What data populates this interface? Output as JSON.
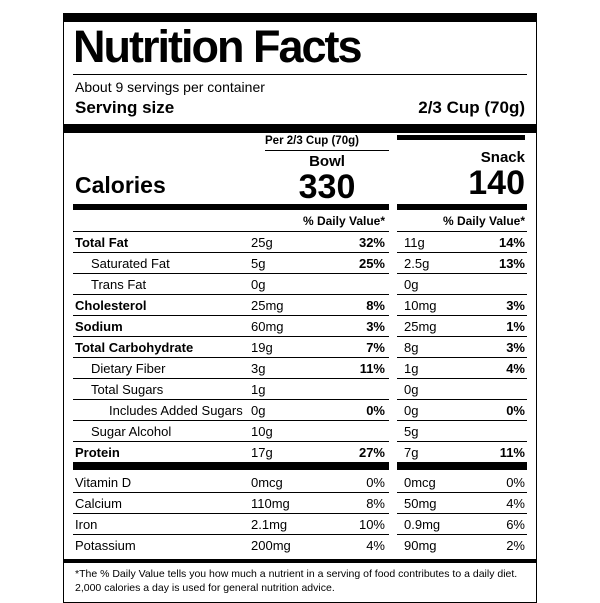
{
  "label": {
    "title": "Nutrition Facts",
    "servings_per_container": "About 9 servings per container",
    "serving_size": {
      "label": "Serving size",
      "value": "2/3 Cup (70g)"
    },
    "calories": {
      "per_header": "Per 2/3 Cup (70g)",
      "label": "Calories",
      "columns": [
        {
          "name": "Bowl",
          "value": "330"
        },
        {
          "name": "Snack",
          "value": "140"
        }
      ]
    },
    "daily_value_header": "% Daily Value*",
    "nutrients": [
      {
        "name": "Total Fat",
        "bold": true,
        "indent": 0,
        "amount1": "25g",
        "dv1": "32%",
        "amount2": "11g",
        "dv2": "14%"
      },
      {
        "name": "Saturated Fat",
        "bold": false,
        "indent": 1,
        "amount1": "5g",
        "dv1": "25%",
        "amount2": "2.5g",
        "dv2": "13%"
      },
      {
        "name": "Trans Fat",
        "bold": false,
        "indent": 1,
        "amount1": "0g",
        "dv1": "",
        "amount2": "0g",
        "dv2": ""
      },
      {
        "name": "Cholesterol",
        "bold": true,
        "indent": 0,
        "amount1": "25mg",
        "dv1": "8%",
        "amount2": "10mg",
        "dv2": "3%"
      },
      {
        "name": "Sodium",
        "bold": true,
        "indent": 0,
        "amount1": "60mg",
        "dv1": "3%",
        "amount2": "25mg",
        "dv2": "1%"
      },
      {
        "name": "Total Carbohydrate",
        "bold": true,
        "indent": 0,
        "amount1": "19g",
        "dv1": "7%",
        "amount2": "8g",
        "dv2": "3%"
      },
      {
        "name": "Dietary Fiber",
        "bold": false,
        "indent": 1,
        "amount1": "3g",
        "dv1": "11%",
        "amount2": "1g",
        "dv2": "4%"
      },
      {
        "name": "Total Sugars",
        "bold": false,
        "indent": 1,
        "amount1": "1g",
        "dv1": "",
        "amount2": "0g",
        "dv2": ""
      },
      {
        "name": "Includes Added Sugars",
        "bold": false,
        "indent": 2,
        "amount1": "0g",
        "dv1": "0%",
        "amount2": "0g",
        "dv2": "0%"
      },
      {
        "name": "Sugar Alcohol",
        "bold": false,
        "indent": 1,
        "amount1": "10g",
        "dv1": "",
        "amount2": "5g",
        "dv2": ""
      },
      {
        "name": "Protein",
        "bold": true,
        "indent": 0,
        "amount1": "17g",
        "dv1": "27%",
        "amount2": "7g",
        "dv2": "11%"
      }
    ],
    "vitamins": [
      {
        "name": "Vitamin D",
        "amount1": "0mcg",
        "dv1": "0%",
        "amount2": "0mcg",
        "dv2": "0%"
      },
      {
        "name": "Calcium",
        "amount1": "110mg",
        "dv1": "8%",
        "amount2": "50mg",
        "dv2": "4%"
      },
      {
        "name": "Iron",
        "amount1": "2.1mg",
        "dv1": "10%",
        "amount2": "0.9mg",
        "dv2": "6%"
      },
      {
        "name": "Potassium",
        "amount1": "200mg",
        "dv1": "4%",
        "amount2": "90mg",
        "dv2": "2%"
      }
    ],
    "footnote": "*The % Daily Value tells you how much a nutrient in a serving of food contributes to a daily diet. 2,000 calories a day is used for general nutrition advice."
  }
}
